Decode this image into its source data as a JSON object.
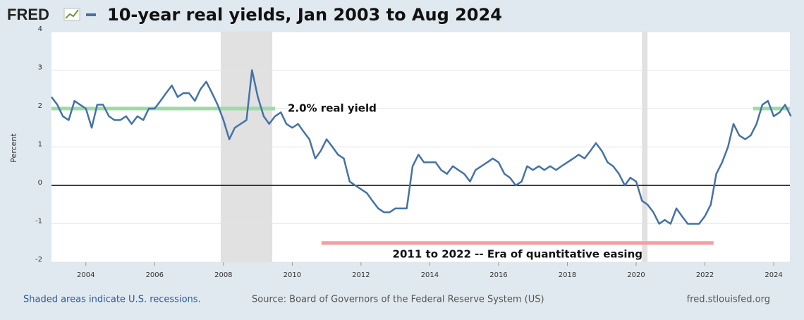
{
  "chart_data": {
    "type": "line",
    "logo": "FRED",
    "title": "10-year real yields, Jan 2003 to Aug 2024",
    "y_label": "Percent",
    "x": [
      2003,
      2003.17,
      2003.33,
      2003.5,
      2003.67,
      2003.83,
      2004,
      2004.17,
      2004.33,
      2004.5,
      2004.67,
      2004.83,
      2005,
      2005.17,
      2005.33,
      2005.5,
      2005.67,
      2005.83,
      2006,
      2006.17,
      2006.33,
      2006.5,
      2006.67,
      2006.83,
      2007,
      2007.17,
      2007.33,
      2007.5,
      2007.67,
      2007.83,
      2008,
      2008.17,
      2008.33,
      2008.5,
      2008.67,
      2008.83,
      2009,
      2009.17,
      2009.33,
      2009.5,
      2009.67,
      2009.83,
      2010,
      2010.17,
      2010.33,
      2010.5,
      2010.67,
      2010.83,
      2011,
      2011.17,
      2011.33,
      2011.5,
      2011.67,
      2011.83,
      2012,
      2012.17,
      2012.33,
      2012.5,
      2012.67,
      2012.83,
      2013,
      2013.17,
      2013.33,
      2013.5,
      2013.67,
      2013.83,
      2014,
      2014.17,
      2014.33,
      2014.5,
      2014.67,
      2014.83,
      2015,
      2015.17,
      2015.33,
      2015.5,
      2015.67,
      2015.83,
      2016,
      2016.17,
      2016.33,
      2016.5,
      2016.67,
      2016.83,
      2017,
      2017.17,
      2017.33,
      2017.5,
      2017.67,
      2017.83,
      2018,
      2018.17,
      2018.33,
      2018.5,
      2018.67,
      2018.83,
      2019,
      2019.17,
      2019.33,
      2019.5,
      2019.67,
      2019.83,
      2020,
      2020.17,
      2020.33,
      2020.5,
      2020.67,
      2020.83,
      2021,
      2021.17,
      2021.33,
      2021.5,
      2021.67,
      2021.83,
      2022,
      2022.17,
      2022.33,
      2022.5,
      2022.67,
      2022.83,
      2023,
      2023.17,
      2023.33,
      2023.5,
      2023.67,
      2023.83,
      2024,
      2024.17,
      2024.33,
      2024.5
    ],
    "series": [
      {
        "color": "#4572a7",
        "values": [
          2.3,
          2.1,
          1.8,
          1.7,
          2.2,
          2.1,
          2.0,
          1.5,
          2.1,
          2.1,
          1.8,
          1.7,
          1.7,
          1.8,
          1.6,
          1.8,
          1.7,
          2.0,
          2.0,
          2.2,
          2.4,
          2.6,
          2.3,
          2.4,
          2.4,
          2.2,
          2.5,
          2.7,
          2.4,
          2.1,
          1.7,
          1.2,
          1.5,
          1.6,
          1.7,
          3.0,
          2.3,
          1.8,
          1.6,
          1.8,
          1.9,
          1.6,
          1.5,
          1.6,
          1.4,
          1.2,
          0.7,
          0.9,
          1.2,
          1.0,
          0.8,
          0.7,
          0.1,
          0.0,
          -0.1,
          -0.2,
          -0.4,
          -0.6,
          -0.7,
          -0.7,
          -0.6,
          -0.6,
          -0.6,
          0.5,
          0.8,
          0.6,
          0.6,
          0.6,
          0.4,
          0.3,
          0.5,
          0.4,
          0.3,
          0.1,
          0.4,
          0.5,
          0.6,
          0.7,
          0.6,
          0.3,
          0.2,
          0.0,
          0.1,
          0.5,
          0.4,
          0.5,
          0.4,
          0.5,
          0.4,
          0.5,
          0.6,
          0.7,
          0.8,
          0.7,
          0.9,
          1.1,
          0.9,
          0.6,
          0.5,
          0.3,
          0.0,
          0.2,
          0.1,
          -0.4,
          -0.5,
          -0.7,
          -1.0,
          -0.9,
          -1.0,
          -0.6,
          -0.8,
          -1.0,
          -1.0,
          -1.0,
          -0.8,
          -0.5,
          0.3,
          0.6,
          1.0,
          1.6,
          1.3,
          1.2,
          1.3,
          1.6,
          2.1,
          2.2,
          1.8,
          1.9,
          2.1,
          1.8
        ]
      }
    ],
    "xlim": [
      2003,
      2024.47
    ],
    "xticks": [
      2004,
      2006,
      2008,
      2010,
      2012,
      2014,
      2016,
      2018,
      2020,
      2022,
      2024
    ],
    "ylim": [
      -2,
      4
    ],
    "yticks": [
      -2,
      -1,
      0,
      1,
      2,
      3,
      4
    ],
    "grid": true,
    "recessions": [
      [
        2007.92,
        2009.42
      ],
      [
        2020.17,
        2020.33
      ]
    ],
    "reference_lines": [
      {
        "value": 2,
        "x": [
          2003,
          2009.5
        ],
        "color": "#9ddba6",
        "label": "2.0% real yield"
      },
      {
        "value": 2,
        "x": [
          2023.4,
          2024.47
        ],
        "color": "#9ddba6"
      },
      {
        "value": -1.5,
        "x": [
          2010.85,
          2022.25
        ],
        "color": "#f0a0a2",
        "label": "2011 to 2022 -- Era of quantitative easing"
      }
    ]
  },
  "footer": {
    "left": "Shaded areas indicate U.S. recessions.",
    "center": "Source: Board of Governors of the Federal Reserve System (US)",
    "right": "fred.stlouisfed.org"
  }
}
